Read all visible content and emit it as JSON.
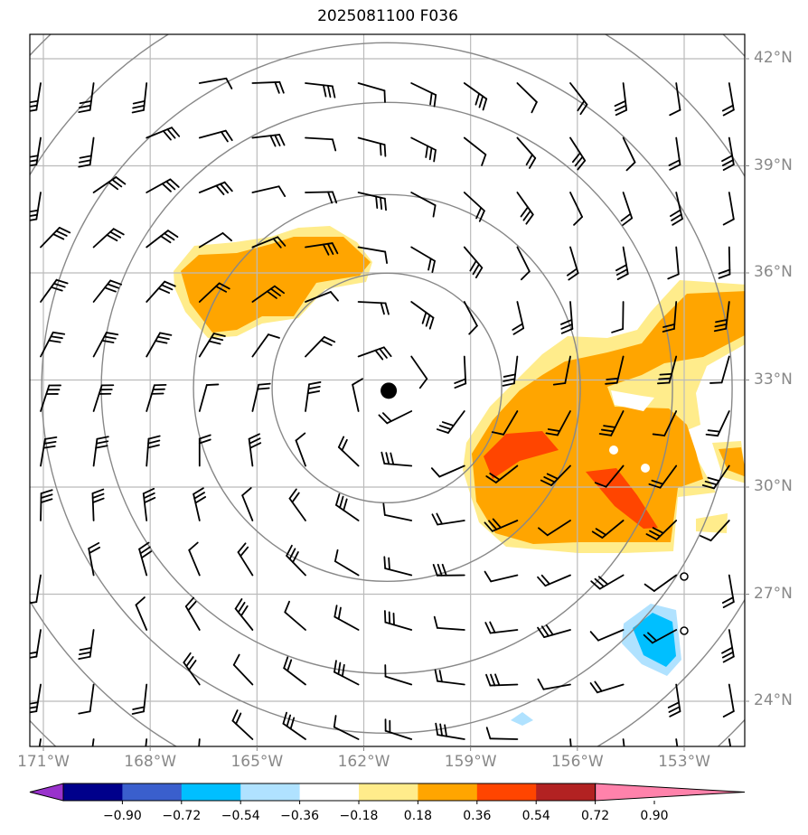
{
  "title": "2025081100 F036",
  "center_marker": {
    "lat": 32.7,
    "lon": -161.3
  },
  "lat_labels": [
    {
      "value": 42,
      "text": "42°N"
    },
    {
      "value": 39,
      "text": "39°N"
    },
    {
      "value": 36,
      "text": "36°N"
    },
    {
      "value": 33,
      "text": "33°N"
    },
    {
      "value": 30,
      "text": "30°N"
    },
    {
      "value": 27,
      "text": "27°N"
    },
    {
      "value": 24,
      "text": "24°N"
    }
  ],
  "lon_labels": [
    {
      "value": -171,
      "text": "171°W"
    },
    {
      "value": -168,
      "text": "168°W"
    },
    {
      "value": -165,
      "text": "165°W"
    },
    {
      "value": -162,
      "text": "162°W"
    },
    {
      "value": -159,
      "text": "159°W"
    },
    {
      "value": -156,
      "text": "156°W"
    },
    {
      "value": -153,
      "text": "153°W"
    }
  ],
  "colorbar": {
    "colors": [
      "#9932cc",
      "#00008b",
      "#3a5fcd",
      "#00bfff",
      "#b0e2ff",
      "#ffffff",
      "#ffec8b",
      "#ffa500",
      "#ff4500",
      "#b22222",
      "#ff82ab"
    ],
    "ticks": [
      "−0.90",
      "−0.72",
      "−0.54",
      "−0.36",
      "−0.18",
      "0.18",
      "0.36",
      "0.54",
      "0.72",
      "0.90"
    ]
  },
  "colors": {
    "range_rings": "#888888",
    "gridlines": "#bbbbbb",
    "barbs": "#000000",
    "axis_labels": "#888888"
  }
}
